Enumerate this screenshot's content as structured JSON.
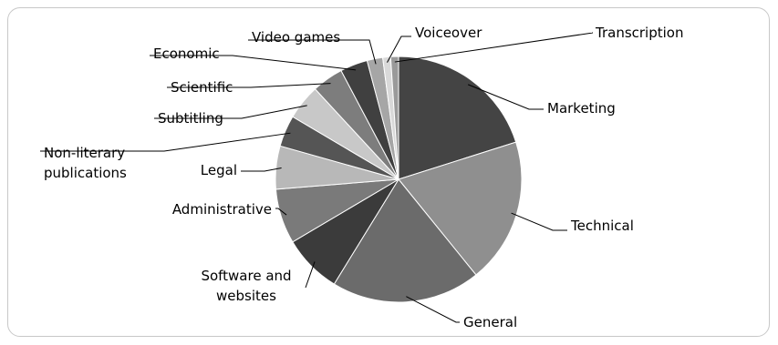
{
  "chart_data": {
    "type": "pie",
    "title": "",
    "legend": "none",
    "labels_outside": true,
    "slices": [
      {
        "label": "Marketing",
        "value": 19.5,
        "color": "#444444"
      },
      {
        "label": "Technical",
        "value": 18.5,
        "color": "#8f8f8f"
      },
      {
        "label": "General",
        "value": 19.0,
        "color": "#6b6b6b"
      },
      {
        "label": "Software and websites",
        "label_lines": [
          "Software and",
          "websites"
        ],
        "value": 7.5,
        "color": "#3b3b3b"
      },
      {
        "label": "Administrative",
        "value": 7.0,
        "color": "#7a7a7a"
      },
      {
        "label": "Legal",
        "value": 5.5,
        "color": "#b8b8b8"
      },
      {
        "label": "Non-literary publications",
        "label_lines": [
          "Non-literary",
          "publications"
        ],
        "value": 4.0,
        "color": "#555555"
      },
      {
        "label": "Subtitling",
        "value": 4.5,
        "color": "#c8c8c8"
      },
      {
        "label": "Scientific",
        "value": 4.0,
        "color": "#7d7d7d"
      },
      {
        "label": "Economic",
        "value": 3.5,
        "color": "#404040"
      },
      {
        "label": "Video games",
        "value": 2.0,
        "color": "#a6a6a6"
      },
      {
        "label": "Voiceover",
        "value": 1.0,
        "color": "#d9d9d9"
      },
      {
        "label": "Transcription",
        "value": 1.0,
        "color": "#9a9a9a"
      }
    ]
  }
}
